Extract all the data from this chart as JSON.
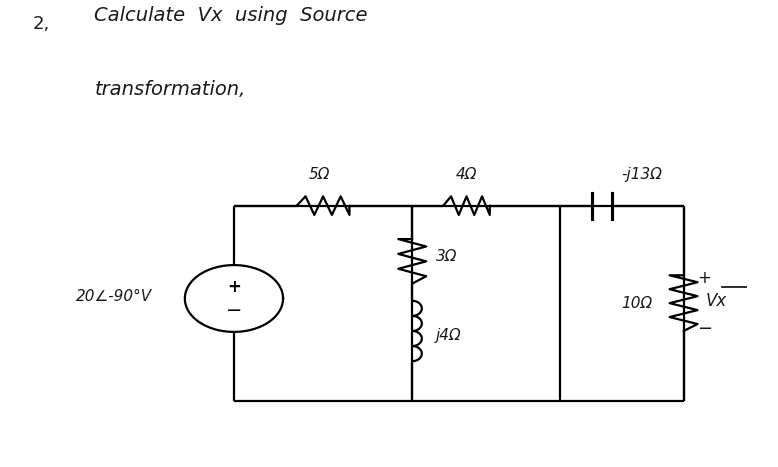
{
  "bg_color": "#ffffff",
  "text_color": "#1a1a1a",
  "problem_number": "2,",
  "title_line1": "Calculate  Vx  using  Source",
  "title_line2": "transformation,",
  "labels": {
    "r1": "5Ω",
    "r2": "4Ω",
    "cap": "-j13Ω",
    "r3": "3Ω",
    "ind": "j4Ω",
    "r4": "10Ω",
    "vsrc": "20∠-90°V",
    "vx": "Vx",
    "plus": "+",
    "minus": "−"
  },
  "circuit": {
    "L": 0.3,
    "R": 0.88,
    "T": 0.56,
    "B": 0.14,
    "M1": 0.53,
    "M2": 0.72
  }
}
